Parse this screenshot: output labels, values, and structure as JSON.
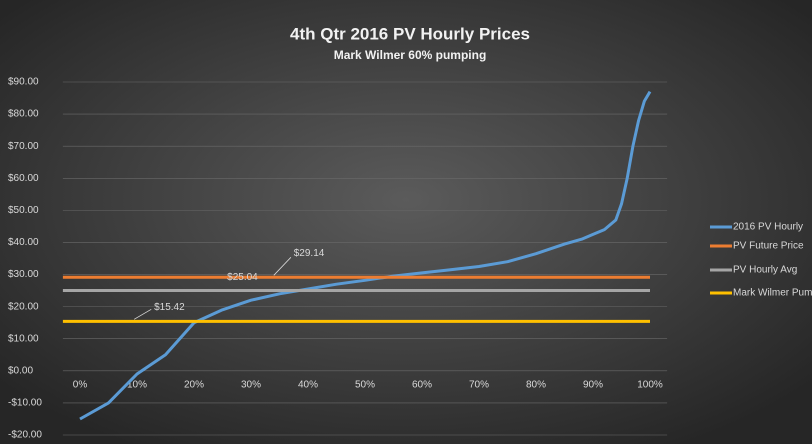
{
  "chart_data": {
    "type": "line",
    "title": "4th Qtr 2016 PV Hourly Prices",
    "subtitle": "Mark Wilmer 60% pumping",
    "x": [
      0,
      5,
      10,
      15,
      20,
      25,
      30,
      35,
      40,
      45,
      50,
      55,
      60,
      65,
      70,
      75,
      80,
      85,
      88,
      90,
      92,
      94,
      95,
      96,
      97,
      98,
      99,
      100
    ],
    "series": [
      {
        "name": "2016 PV Hourly",
        "color": "#5b9bd5",
        "values": [
          -15,
          -10,
          -1,
          5,
          15,
          19,
          22,
          24,
          25.5,
          27,
          28.2,
          29.5,
          30.5,
          31.5,
          32.5,
          34,
          36.5,
          39.5,
          41,
          42.5,
          44,
          47,
          52,
          60,
          70,
          78,
          84,
          87
        ]
      },
      {
        "name": "PV Future Price",
        "color": "#ed7d31",
        "value": 29.14,
        "value_label": "$29.14"
      },
      {
        "name": "PV Hourly Avg",
        "color": "#a5a5a5",
        "value": 25.04,
        "value_label": "$25.04"
      },
      {
        "name": "Mark Wilmer Pump",
        "color": "#ffc000",
        "value": 15.42,
        "value_label": "$15.42"
      }
    ],
    "xlim": [
      -3,
      103
    ],
    "xticks": [
      {
        "value": 0,
        "label": "0%"
      },
      {
        "value": 10,
        "label": "10%"
      },
      {
        "value": 20,
        "label": "20%"
      },
      {
        "value": 30,
        "label": "30%"
      },
      {
        "value": 40,
        "label": "40%"
      },
      {
        "value": 50,
        "label": "50%"
      },
      {
        "value": 60,
        "label": "60%"
      },
      {
        "value": 70,
        "label": "70%"
      },
      {
        "value": 80,
        "label": "80%"
      },
      {
        "value": 90,
        "label": "90%"
      },
      {
        "value": 100,
        "label": "100%"
      }
    ],
    "ylim": [
      -20,
      90
    ],
    "yticks": [
      {
        "value": -20,
        "label": "-$20.00"
      },
      {
        "value": -10,
        "label": "-$10.00"
      },
      {
        "value": 0,
        "label": "$0.00"
      },
      {
        "value": 10,
        "label": "$10.00"
      },
      {
        "value": 20,
        "label": "$20.00"
      },
      {
        "value": 30,
        "label": "$30.00"
      },
      {
        "value": 40,
        "label": "$40.00"
      },
      {
        "value": 50,
        "label": "$50.00"
      },
      {
        "value": 60,
        "label": "$60.00"
      },
      {
        "value": 70,
        "label": "$70.00"
      },
      {
        "value": 80,
        "label": "$80.00"
      },
      {
        "value": 90,
        "label": "$90.00"
      }
    ],
    "grid": true,
    "legend": "right"
  }
}
